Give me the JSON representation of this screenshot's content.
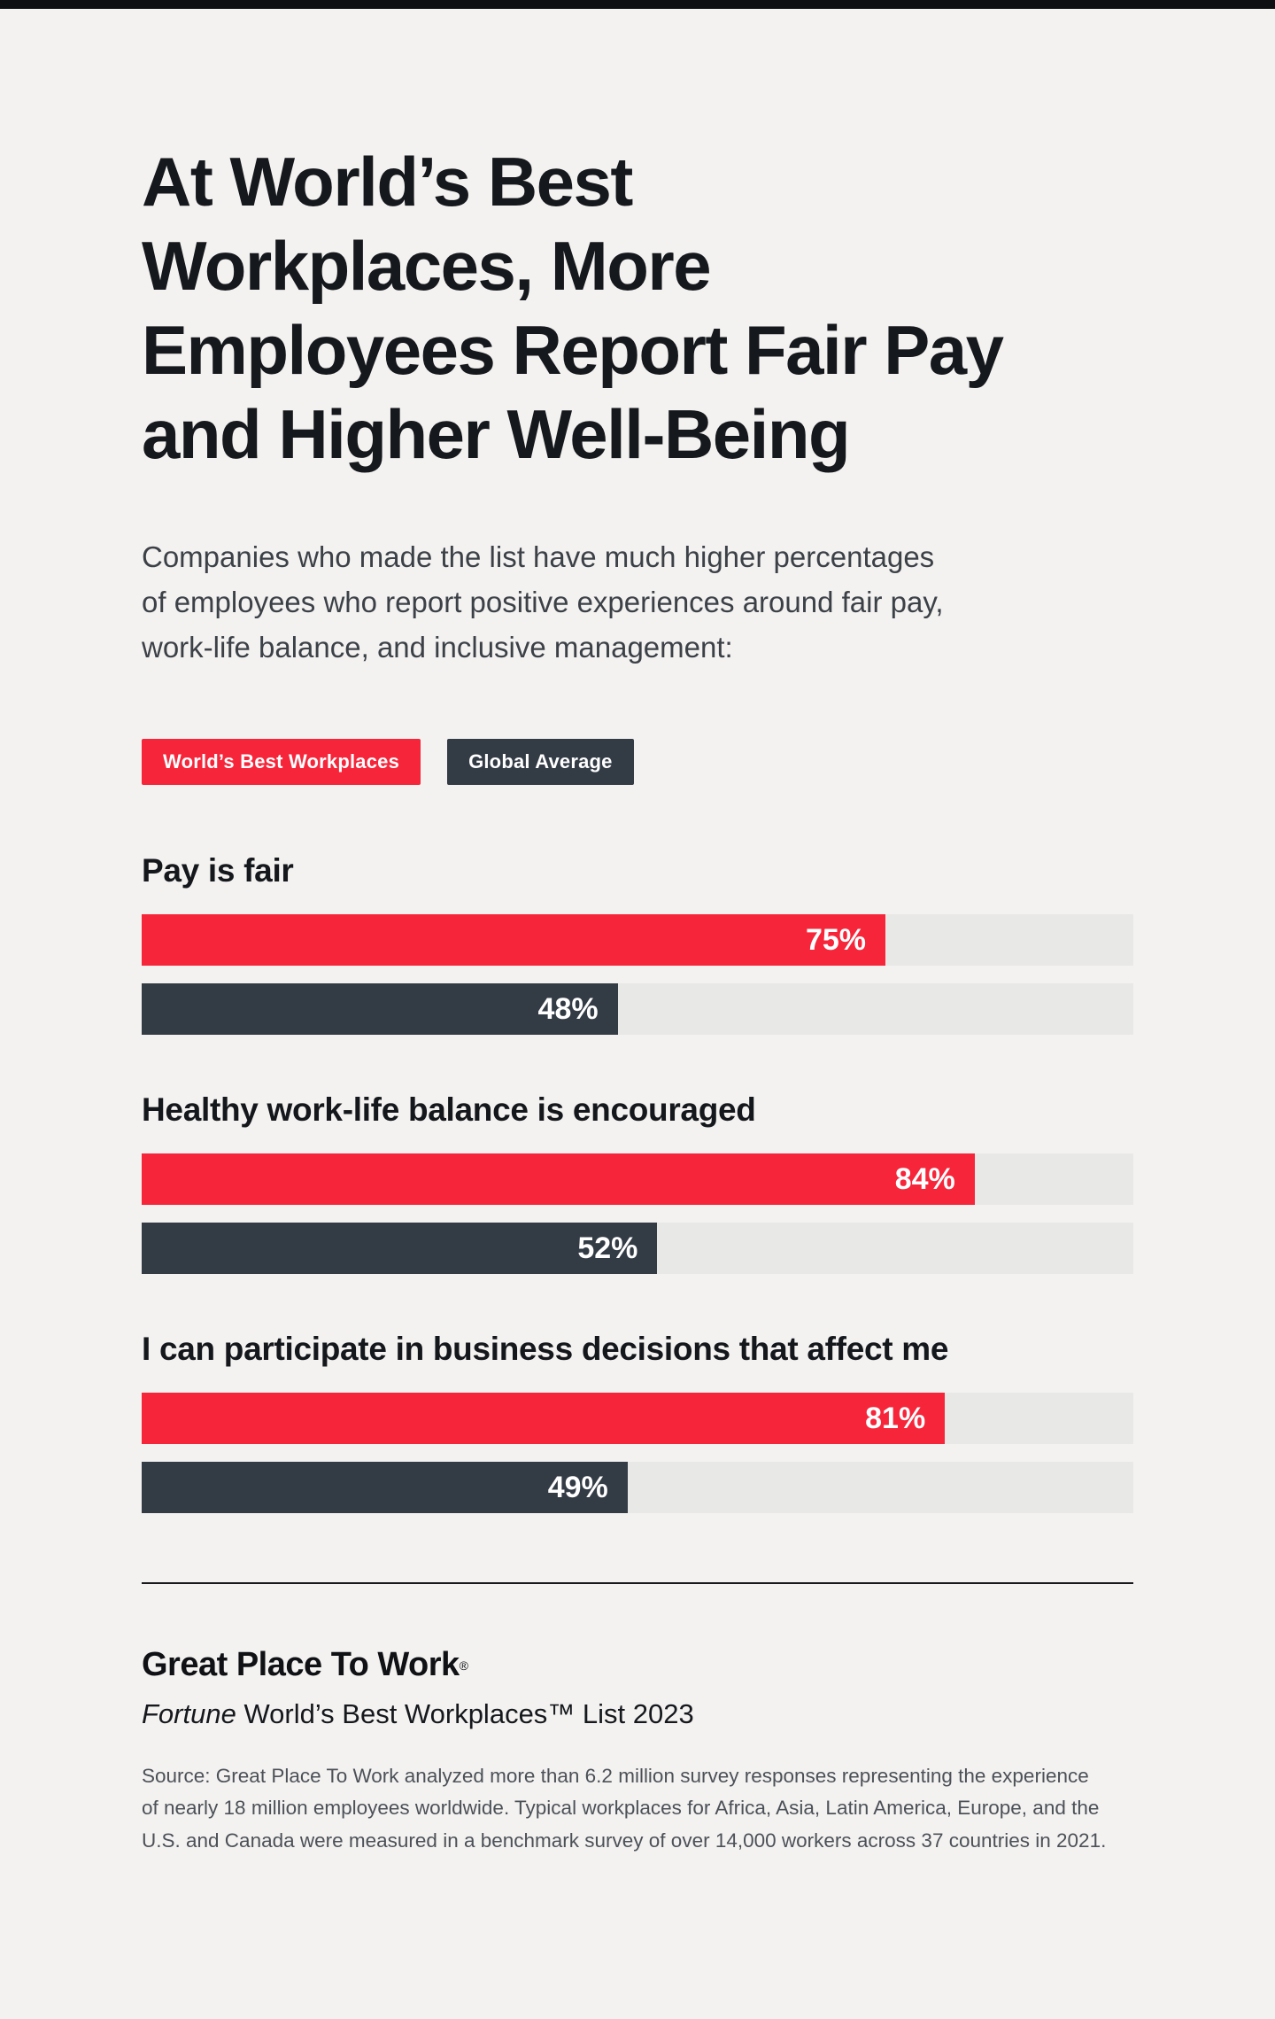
{
  "page": {
    "background": "#f3f2f0",
    "top_bar_color": "#0e0f12"
  },
  "header": {
    "title_lines": [
      "At World’s Best",
      "Workplaces, More",
      "Employees Report Fair Pay",
      "and Higher Well-Being"
    ],
    "subtitle_lines": [
      "Companies who made the list have much higher percentages",
      "of employees who report positive experiences around fair pay,",
      "work-life balance, and inclusive management:"
    ]
  },
  "legend": {
    "items": [
      {
        "label": "World’s Best Workplaces",
        "color": "#f6253a"
      },
      {
        "label": "Global Average",
        "color": "#333b45"
      }
    ]
  },
  "chart_data": {
    "type": "bar",
    "orientation": "horizontal",
    "value_suffix": "%",
    "xlim": [
      0,
      100
    ],
    "grid": false,
    "legend_position": "top",
    "categories": [
      "Pay is fair",
      "Healthy work-life balance is encouraged",
      "I can participate in business decisions that affect me"
    ],
    "series": [
      {
        "name": "World’s Best Workplaces",
        "color": "#f6253a",
        "values": [
          75,
          84,
          81
        ],
        "labels": [
          "75%",
          "84%",
          "81%"
        ]
      },
      {
        "name": "Global Average",
        "color": "#333b45",
        "values": [
          48,
          52,
          49
        ],
        "labels": [
          "48%",
          "52%",
          "49%"
        ]
      }
    ],
    "track_color": "#e8e8e6"
  },
  "footer": {
    "logo_text": "Great Place To Work",
    "logo_registered": "®",
    "list_title_italic": "Fortune",
    "list_title_rest": " World’s Best Workplaces™ List 2023",
    "source_text": "Source: Great Place To Work analyzed more than 6.2 million survey responses representing the experience of nearly 18 million employees worldwide. Typical workplaces for Africa, Asia, Latin America, Europe, and the U.S. and Canada were measured in a benchmark survey of over 14,000 workers across 37 countries in 2021."
  }
}
